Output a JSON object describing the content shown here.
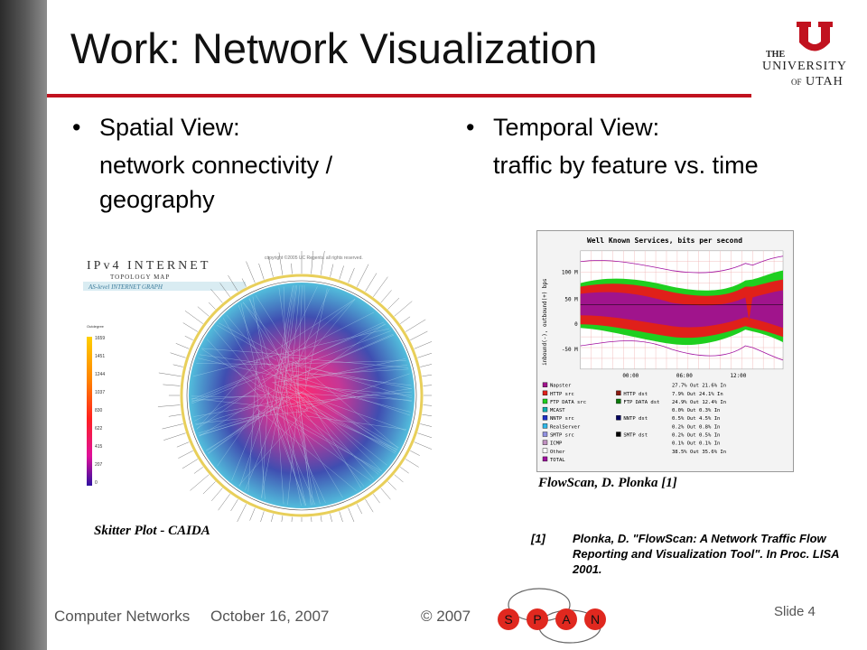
{
  "slide": {
    "title": "Work: Network Visualization",
    "logo": {
      "the": "THE",
      "university": "UNIVERSITY",
      "of": "OF",
      "utah": "UTAH"
    },
    "left_column": {
      "bullet": "Spatial View:",
      "sub": "network connectivity / geography",
      "figure": {
        "header": "IPv4 INTERNET",
        "subheader": "TOPOLOGY MAP",
        "banner": "AS-level INTERNET GRAPH",
        "copyright": "copyright ©2005 UC Regents. all rights reserved.",
        "scale_title": "Outdegree",
        "scale_ticks": [
          "1659",
          "1451",
          "1244",
          "1037",
          "830",
          "622",
          "415",
          "207",
          "0"
        ]
      },
      "caption": "Skitter Plot - CAIDA"
    },
    "right_column": {
      "bullet": "Temporal View:",
      "sub": "traffic by feature vs. time",
      "figure": {
        "title": "Well Known Services, bits per second",
        "ylabel": "inbound(-), outbound(+) bps",
        "yticks": [
          "100 M",
          "50 M",
          "0",
          "-50 M"
        ],
        "xticks": [
          "00:00",
          "06:00",
          "12:00"
        ],
        "legend": [
          {
            "label": "Napster",
            "stats": "27.7% Out  21.6% In",
            "color": "#a0148c"
          },
          {
            "label": "HTTP src",
            "stats": "",
            "color": "#e0201a"
          },
          {
            "label": "HTTP dst",
            "stats": "7.9% Out  24.1% In",
            "color": "#8b1a10"
          },
          {
            "label": "FTP DATA src",
            "stats": "",
            "color": "#1fcf1f"
          },
          {
            "label": "FTP DATA dst",
            "stats": "24.9% Out  12.4% In",
            "color": "#0a7a0a"
          },
          {
            "label": "MCAST",
            "stats": "0.0% Out  0.3% In",
            "color": "#10b0b0"
          },
          {
            "label": "NNTP src",
            "stats": "",
            "color": "#2030c8"
          },
          {
            "label": "NNTP dst",
            "stats": "0.5% Out  4.5% In",
            "color": "#000060"
          },
          {
            "label": "RealServer",
            "stats": "0.2% Out  0.8% In",
            "color": "#30b8e8"
          },
          {
            "label": "SMTP src",
            "stats": "",
            "color": "#9090e0"
          },
          {
            "label": "SMTP dst",
            "stats": "0.2% Out  0.5% In",
            "color": "#000000"
          },
          {
            "label": "ICMP",
            "stats": "0.1% Out  0.1% In",
            "color": "#c090c0"
          },
          {
            "label": "Other",
            "stats": "38.5% Out  35.6% In",
            "color": "#ffffff"
          },
          {
            "label": "TOTAL",
            "stats": "",
            "color": "#a010a0"
          }
        ]
      },
      "caption": "FlowScan, D. Plonka [1]"
    },
    "reference": {
      "num": "[1]",
      "text": "Plonka, D. \"FlowScan: A Network Traffic Flow Reporting and Visualization Tool\". In Proc. LISA 2001."
    },
    "footer": {
      "course": "Computer Networks",
      "date": "October 16, 2007",
      "copyright": "© 2007",
      "slide": "Slide 4",
      "span_letters": [
        "S",
        "P",
        "A",
        "N"
      ]
    }
  },
  "colors": {
    "accent": "#c1121f",
    "text": "#111111",
    "footer": "#555555"
  }
}
